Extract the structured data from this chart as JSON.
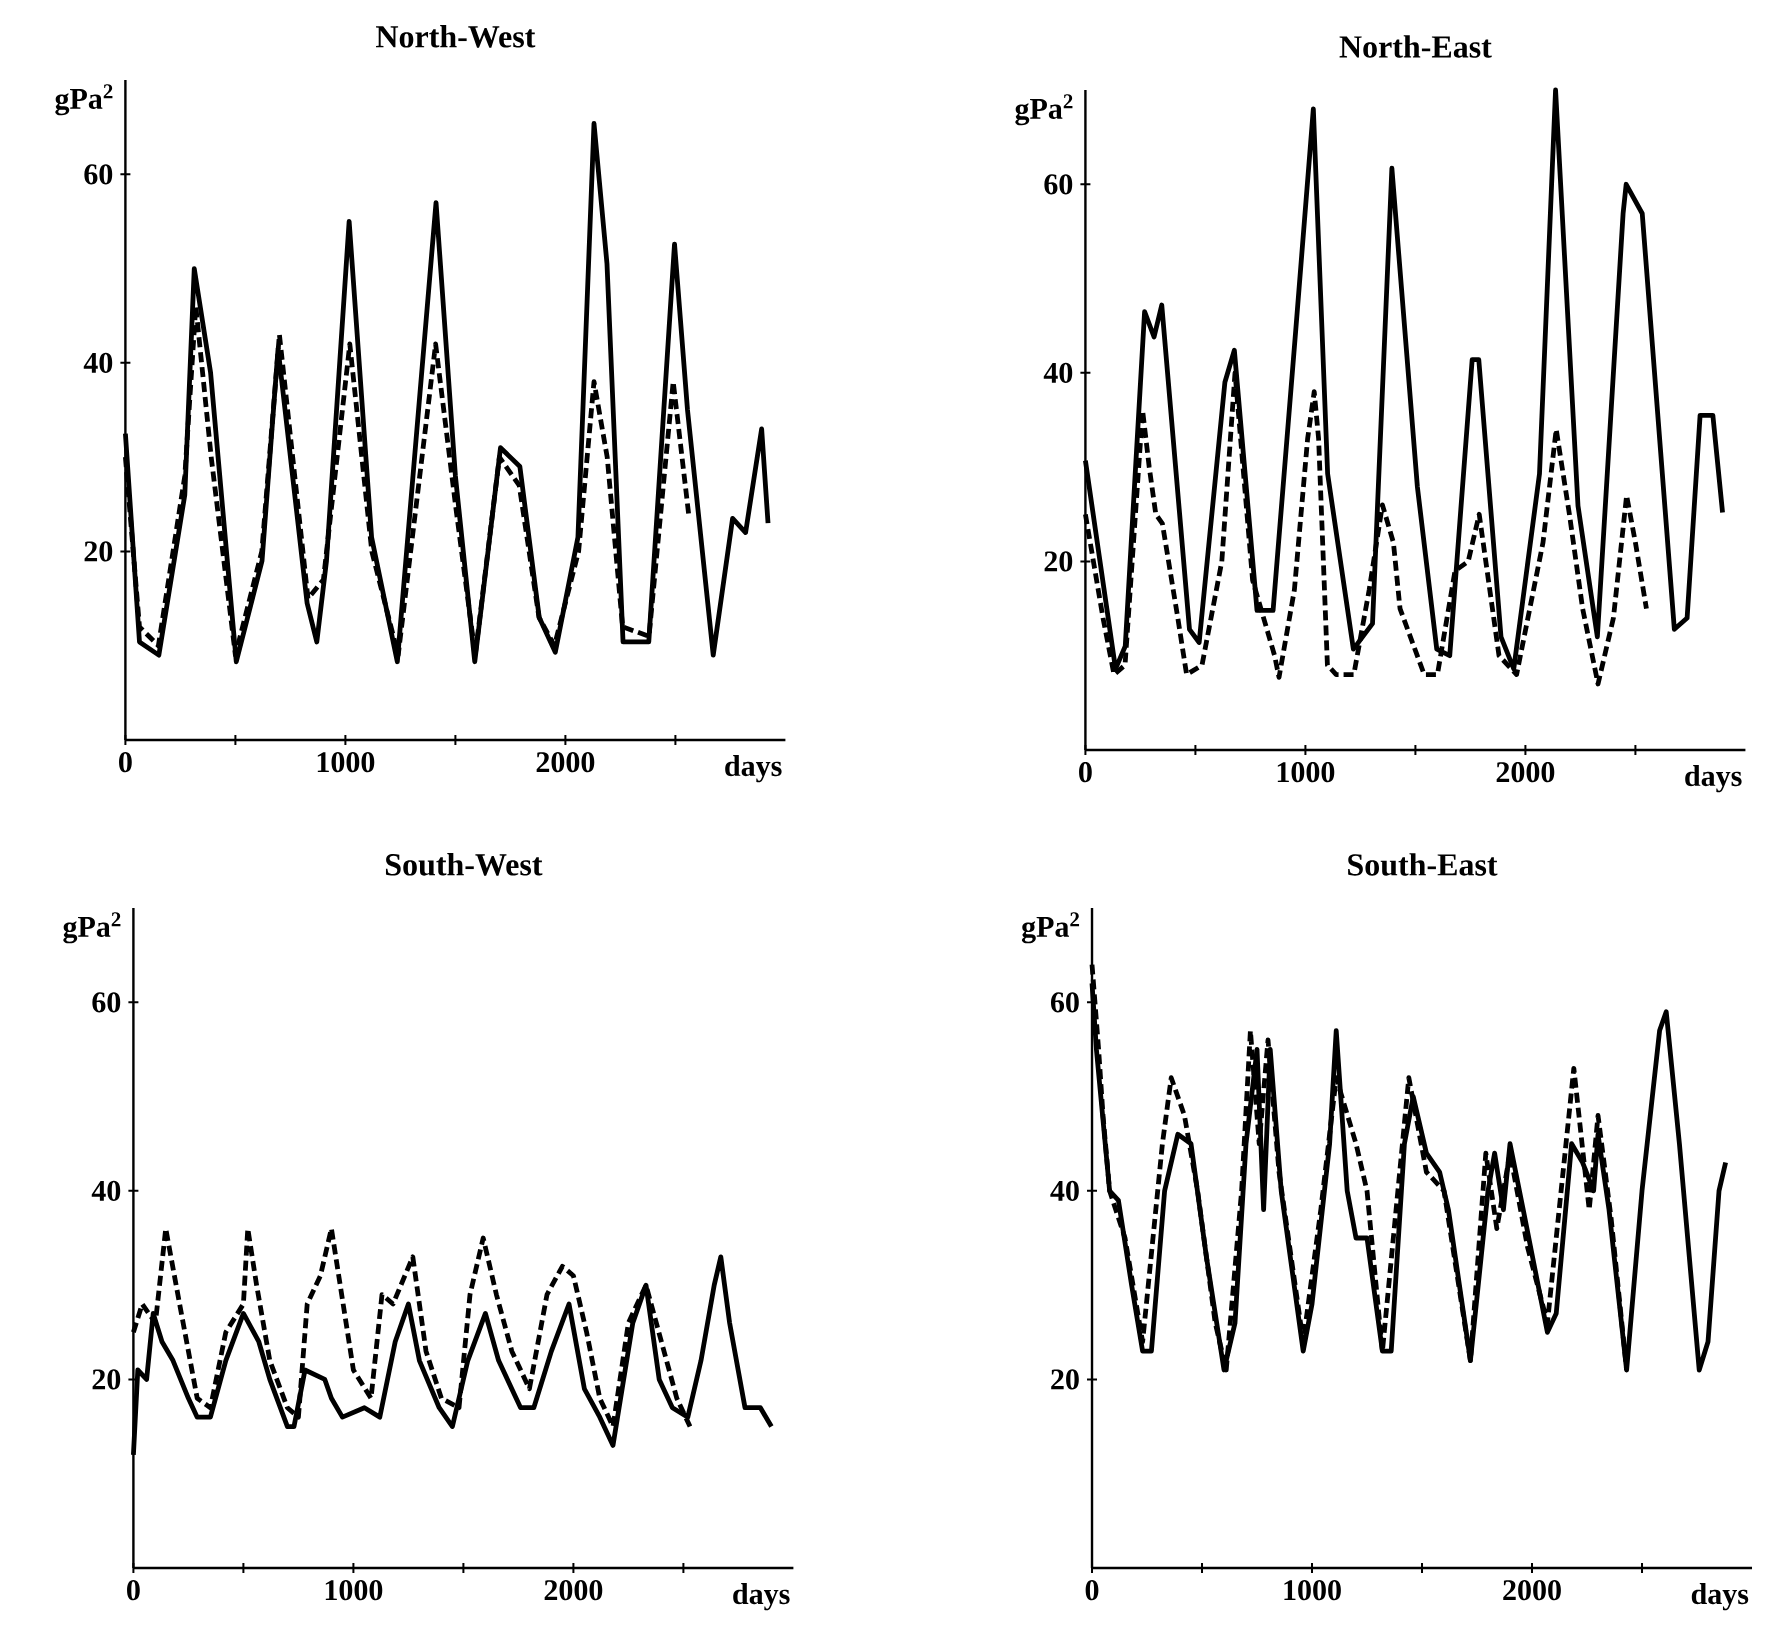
{
  "chart_data": [
    {
      "type": "line",
      "title": "North-West",
      "xlabel": "days",
      "ylabel": "gPa$^{2}$",
      "xlim": [
        0,
        3000
      ],
      "ylim": [
        0,
        70
      ],
      "xticks": [
        0,
        {
          "value": 500,
          "label": null
        },
        1000,
        {
          "value": 1500,
          "label": null
        },
        2000,
        {
          "value": 2500,
          "label": null
        }
      ],
      "yticks": [
        20,
        40,
        60
      ],
      "series": [
        {
          "color": "#000000",
          "line_style": "solid",
          "x": [
            0,
            64,
            152,
            270,
            313,
            387,
            504,
            621,
            694,
            826,
            870,
            914,
            1017,
            1119,
            1236,
            1412,
            1500,
            1588,
            1705,
            1793,
            1881,
            1954,
            2057,
            2130,
            2189,
            2262,
            2379,
            2496,
            2555,
            2672,
            2760,
            2819,
            2892,
            2921
          ],
          "values": [
            32.5,
            10.4,
            9,
            26,
            50,
            39,
            8.3,
            19,
            41.5,
            14.5,
            10.4,
            19,
            55,
            21.5,
            8.3,
            57,
            28,
            8.3,
            31,
            29,
            13,
            9.3,
            21.5,
            65.4,
            50.5,
            10.4,
            10.4,
            52.6,
            35,
            9,
            23.5,
            22,
            33,
            23
          ]
        },
        {
          "color": "#000000",
          "line_style": "dashed",
          "x": [
            0,
            64,
            150,
            270,
            320,
            390,
            500,
            620,
            700,
            830,
            900,
            1020,
            1120,
            1240,
            1410,
            1500,
            1590,
            1700,
            1790,
            1880,
            1950,
            2060,
            2130,
            2190,
            2260,
            2380,
            2490,
            2560
          ],
          "values": [
            30,
            12,
            10,
            28,
            46,
            30,
            9,
            20,
            43,
            15,
            17,
            42,
            20,
            9,
            42,
            25,
            9,
            30,
            27,
            13,
            10,
            20,
            38,
            30,
            12,
            11,
            38,
            24
          ]
        }
      ]
    },
    {
      "type": "line",
      "title": "North-East",
      "xlabel": "days",
      "ylabel": "gPa$^{2}$",
      "xlim": [
        0,
        3000
      ],
      "ylim": [
        0,
        70
      ],
      "xticks": [
        0,
        {
          "value": 500,
          "label": null
        },
        1000,
        {
          "value": 1500,
          "label": null
        },
        2000,
        {
          "value": 2500,
          "label": null
        }
      ],
      "yticks": [
        20,
        40,
        60
      ],
      "series": [
        {
          "color": "#000000",
          "line_style": "solid",
          "x": [
            0,
            137,
            181,
            269,
            312,
            347,
            473,
            517,
            634,
            677,
            780,
            853,
            956,
            1036,
            1101,
            1218,
            1305,
            1393,
            1509,
            1597,
            1656,
            1758,
            1788,
            1889,
            1947,
            2064,
            2137,
            2239,
            2327,
            2444,
            2458,
            2531,
            2677,
            2735,
            2794,
            2852,
            2896
          ],
          "values": [
            30.7,
            8.6,
            11,
            46.5,
            43.8,
            47.2,
            12.8,
            11.4,
            39,
            42.4,
            14.8,
            14.8,
            44.5,
            68,
            29.3,
            10.7,
            13.4,
            61.7,
            27.9,
            10.7,
            10,
            41.4,
            41.4,
            12,
            8.6,
            29.3,
            70,
            25.9,
            12,
            56.9,
            60,
            56.9,
            12.8,
            14,
            35.5,
            35.5,
            25.2
          ]
        },
        {
          "color": "#000000",
          "line_style": "dashed",
          "x": [
            0,
            80,
            130,
            180,
            260,
            290,
            320,
            350,
            420,
            460,
            530,
            620,
            680,
            760,
            860,
            880,
            950,
            1010,
            1040,
            1060,
            1100,
            1140,
            1220,
            1290,
            1350,
            1400,
            1430,
            1540,
            1600,
            1680,
            1740,
            1790,
            1880,
            1960,
            2080,
            2140,
            2200,
            2260,
            2330,
            2400,
            2460,
            2500,
            2550
          ],
          "values": [
            25,
            14,
            8,
            9,
            36,
            30,
            25,
            24,
            14,
            8,
            9,
            20,
            40,
            18,
            10,
            7.7,
            17,
            33,
            38,
            33,
            9,
            8,
            8,
            17,
            26,
            22,
            15,
            8,
            8,
            19,
            20,
            25,
            10,
            8,
            22,
            34,
            25,
            15,
            7,
            14,
            27,
            22,
            15
          ]
        }
      ]
    },
    {
      "type": "line",
      "title": "South-West",
      "xlabel": "days",
      "ylabel": "gPa$^{2}$",
      "xlim": [
        0,
        3000
      ],
      "ylim": [
        0,
        70
      ],
      "xticks": [
        0,
        {
          "value": 500,
          "label": null
        },
        1000,
        {
          "value": 1500,
          "label": null
        },
        2000,
        {
          "value": 2500,
          "label": null
        }
      ],
      "yticks": [
        20,
        40,
        60
      ],
      "series": [
        {
          "color": "#000000",
          "line_style": "solid",
          "x": [
            0,
            20,
            60,
            90,
            130,
            180,
            250,
            290,
            350,
            420,
            500,
            570,
            620,
            700,
            730,
            780,
            870,
            900,
            950,
            1050,
            1120,
            1190,
            1250,
            1300,
            1390,
            1450,
            1520,
            1600,
            1660,
            1760,
            1820,
            1900,
            1980,
            2050,
            2120,
            2180,
            2270,
            2330,
            2390,
            2450,
            2520,
            2580,
            2640,
            2670,
            2710,
            2780,
            2850,
            2900
          ],
          "values": [
            12,
            21,
            20,
            27,
            24,
            22,
            18,
            16,
            16,
            22,
            27,
            24,
            20,
            15,
            15,
            21,
            20,
            18,
            16,
            17,
            16,
            24,
            28,
            22,
            17,
            15,
            22,
            27,
            22,
            17,
            17,
            23,
            28,
            19,
            16,
            13,
            26,
            30,
            20,
            17,
            16,
            22,
            30,
            33,
            26,
            17,
            17,
            15
          ]
        },
        {
          "color": "#000000",
          "line_style": "dashed",
          "x": [
            0,
            40,
            100,
            147,
            210,
            290,
            350,
            420,
            500,
            520,
            560,
            620,
            700,
            750,
            790,
            850,
            900,
            960,
            1000,
            1080,
            1130,
            1180,
            1270,
            1330,
            1400,
            1480,
            1530,
            1590,
            1650,
            1720,
            1800,
            1880,
            1950,
            2000,
            2060,
            2120,
            2180,
            2250,
            2330,
            2400,
            2470,
            2530
          ],
          "values": [
            25,
            28,
            26,
            36,
            28,
            18,
            17,
            25,
            28,
            36,
            30,
            22,
            17,
            16,
            28,
            31,
            36,
            27,
            21,
            18,
            29,
            28,
            33,
            23,
            18,
            17,
            29,
            35,
            29,
            23,
            19,
            29,
            32,
            31,
            25,
            18,
            15,
            26,
            30,
            24,
            18,
            15
          ]
        }
      ]
    },
    {
      "type": "line",
      "title": "South-East",
      "xlabel": "days",
      "ylabel": "gPa$^{2}$",
      "xlim": [
        0,
        3000
      ],
      "ylim": [
        0,
        70
      ],
      "xticks": [
        0,
        {
          "value": 500,
          "label": null
        },
        1000,
        {
          "value": 1500,
          "label": null
        },
        2000,
        {
          "value": 2500,
          "label": null
        }
      ],
      "yticks": [
        20,
        40,
        60
      ],
      "series": [
        {
          "color": "#000000",
          "line_style": "solid",
          "x": [
            0,
            20,
            40,
            60,
            80,
            120,
            180,
            230,
            270,
            330,
            390,
            450,
            520,
            600,
            650,
            700,
            750,
            780,
            810,
            860,
            960,
            1000,
            1080,
            1110,
            1160,
            1200,
            1250,
            1320,
            1360,
            1420,
            1460,
            1520,
            1580,
            1620,
            1720,
            1800,
            1830,
            1870,
            1900,
            1960,
            2070,
            2110,
            2180,
            2230,
            2280,
            2300,
            2350,
            2430,
            2500,
            2580,
            2610,
            2670,
            2760,
            2800,
            2850,
            2880
          ],
          "values": [
            62,
            55,
            50,
            45,
            40,
            39,
            30,
            23,
            23,
            40,
            46,
            45,
            33,
            21,
            26,
            45,
            55,
            38,
            55,
            40,
            23,
            28,
            45,
            57,
            40,
            35,
            35,
            23,
            23,
            45,
            50,
            44,
            42,
            38,
            22,
            40,
            44,
            38,
            45,
            38,
            25,
            27,
            45,
            43,
            40,
            46,
            38,
            21,
            40,
            57,
            59,
            45,
            21,
            24,
            40,
            43
          ]
        },
        {
          "color": "#000000",
          "line_style": "dashed",
          "x": [
            0,
            30,
            50,
            80,
            150,
            230,
            320,
            360,
            420,
            480,
            560,
            610,
            680,
            720,
            760,
            800,
            850,
            960,
            1040,
            1110,
            1200,
            1250,
            1320,
            1440,
            1520,
            1600,
            1720,
            1790,
            1840,
            1900,
            1980,
            2070,
            2190,
            2260,
            2300,
            2360,
            2430
          ],
          "values": [
            64,
            55,
            48,
            40,
            35,
            24,
            45,
            52,
            48,
            40,
            26,
            21,
            40,
            57,
            45,
            56,
            42,
            24,
            38,
            52,
            45,
            40,
            23,
            52,
            42,
            40,
            22,
            44,
            36,
            44,
            34,
            26,
            53,
            38,
            48,
            37,
            21
          ]
        }
      ]
    }
  ]
}
